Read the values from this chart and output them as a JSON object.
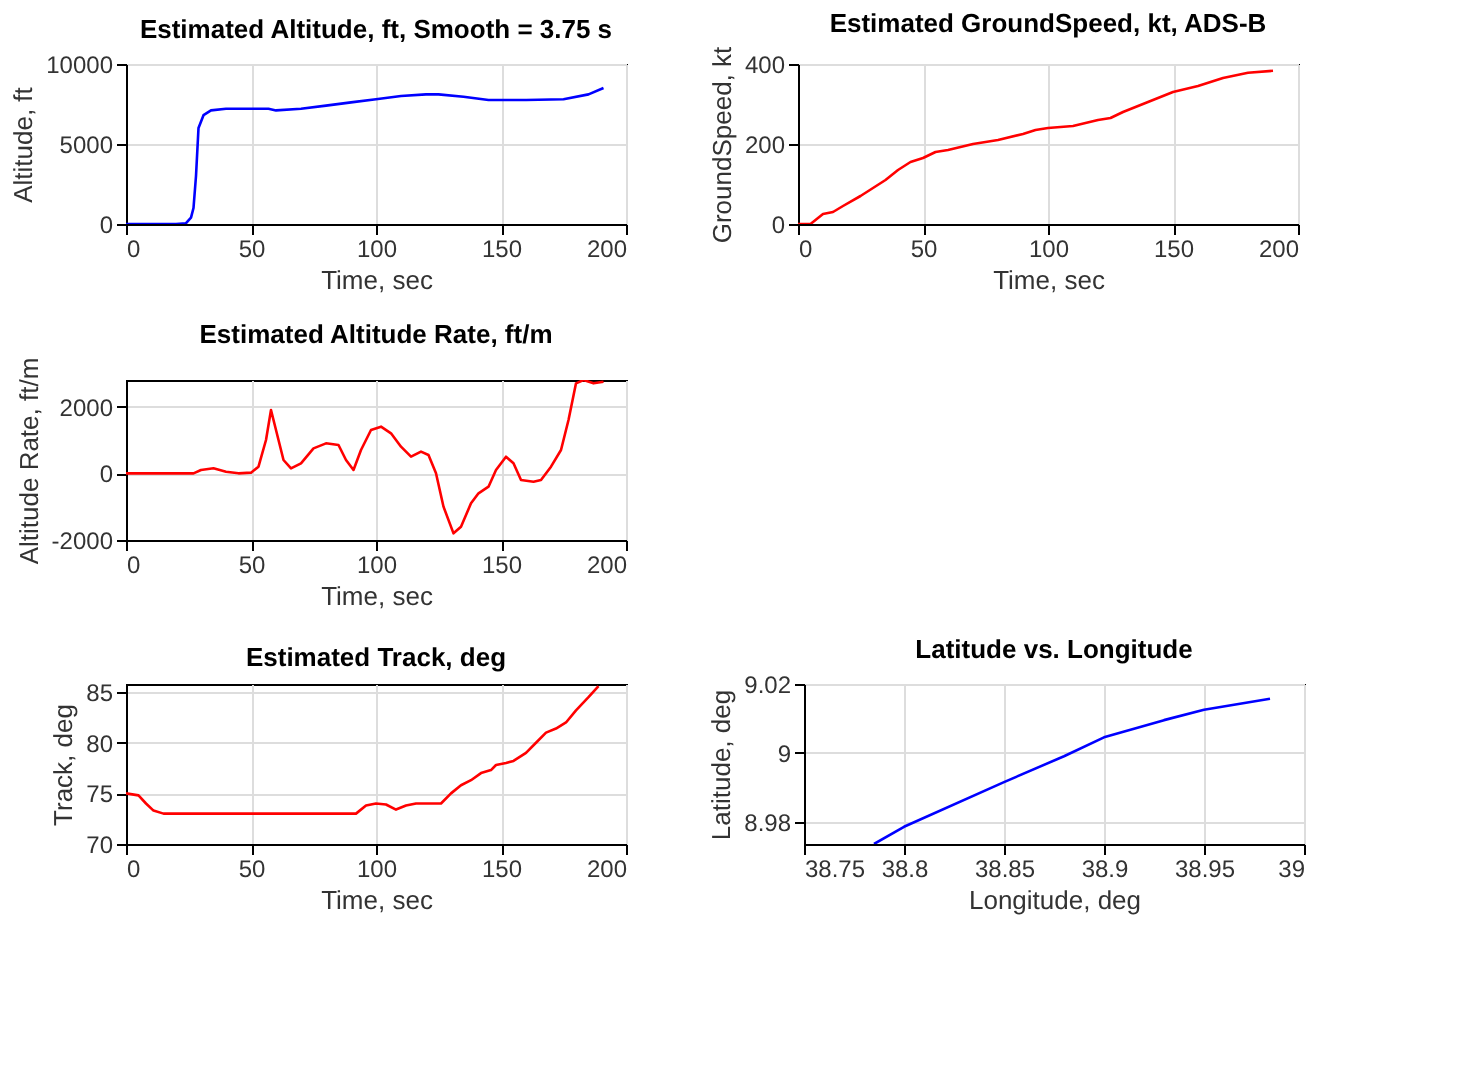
{
  "chart_data": [
    {
      "type": "line",
      "title": "Estimated Altitude, ft, Smooth = 3.75 s",
      "xlabel": "Time, sec",
      "ylabel": "Altitude, ft",
      "xlim": [
        0,
        200
      ],
      "xticks": [
        0,
        50,
        100,
        150,
        200
      ],
      "ylim": [
        0,
        10000
      ],
      "yticks": [
        0,
        5000,
        10000
      ],
      "grid": true,
      "series": [
        {
          "color": "#0000ff",
          "x": [
            0,
            10,
            20,
            24,
            26,
            27,
            28,
            29,
            31,
            34,
            40,
            50,
            57,
            60,
            70,
            80,
            90,
            100,
            110,
            120,
            125,
            135,
            145,
            160,
            175,
            185,
            191
          ],
          "values": [
            0,
            0,
            0,
            50,
            400,
            1000,
            3000,
            6000,
            6800,
            7100,
            7200,
            7200,
            7200,
            7100,
            7200,
            7400,
            7600,
            7800,
            8000,
            8100,
            8100,
            7950,
            7750,
            7750,
            7800,
            8100,
            8500
          ]
        }
      ]
    },
    {
      "type": "line",
      "title": "Estimated GroundSpeed, kt, ADS-B",
      "xlabel": "Time, sec",
      "ylabel": "GroundSpeed, kt",
      "xlim": [
        0,
        200
      ],
      "xticks": [
        0,
        50,
        100,
        150,
        200
      ],
      "ylim": [
        0,
        400
      ],
      "yticks": [
        0,
        200,
        400
      ],
      "grid": true,
      "series": [
        {
          "color": "#ff0000",
          "x": [
            0,
            5,
            8,
            10,
            14,
            18,
            25,
            30,
            35,
            40,
            45,
            50,
            55,
            60,
            70,
            80,
            90,
            95,
            100,
            110,
            120,
            125,
            130,
            140,
            150,
            160,
            170,
            180,
            190
          ],
          "values": [
            0,
            0,
            15,
            25,
            30,
            45,
            70,
            90,
            110,
            135,
            155,
            165,
            180,
            185,
            200,
            210,
            225,
            235,
            240,
            245,
            260,
            265,
            280,
            305,
            330,
            345,
            365,
            378,
            383
          ]
        }
      ]
    },
    {
      "type": "line",
      "title": "Estimated Altitude Rate, ft/m",
      "xlabel": "Time, sec",
      "ylabel": "Altitude Rate, ft/m",
      "xlim": [
        0,
        200
      ],
      "xticks": [
        0,
        50,
        100,
        150,
        200
      ],
      "ylim": [
        -2000,
        2800
      ],
      "yticks": [
        -2000,
        0,
        2000
      ],
      "grid": true,
      "series": [
        {
          "color": "#ff0000",
          "x": [
            0,
            27,
            30,
            35,
            40,
            45,
            50,
            53,
            56,
            58,
            60,
            63,
            66,
            70,
            75,
            80,
            85,
            88,
            91,
            94,
            98,
            102,
            106,
            110,
            114,
            118,
            121,
            124,
            127,
            131,
            134,
            138,
            141,
            145,
            148,
            152,
            155,
            158,
            163,
            166,
            170,
            174,
            177,
            180,
            183,
            187,
            191
          ],
          "values": [
            0,
            0,
            100,
            150,
            50,
            0,
            20,
            200,
            1000,
            1900,
            1300,
            400,
            150,
            300,
            750,
            900,
            850,
            400,
            100,
            700,
            1300,
            1400,
            1200,
            800,
            500,
            650,
            550,
            0,
            -1000,
            -1800,
            -1600,
            -900,
            -600,
            -400,
            100,
            500,
            300,
            -200,
            -250,
            -200,
            200,
            700,
            1600,
            2700,
            2800,
            2700,
            2750
          ]
        }
      ]
    },
    {
      "type": "line",
      "title": "Estimated Track, deg",
      "xlabel": "Time, sec",
      "ylabel": "Track, deg",
      "xlim": [
        0,
        200
      ],
      "xticks": [
        0,
        50,
        100,
        150,
        200
      ],
      "ylim": [
        70,
        85.8
      ],
      "yticks": [
        70,
        75,
        80,
        85
      ],
      "grid": true,
      "series": [
        {
          "color": "#ff0000",
          "x": [
            0,
            5,
            8,
            11,
            15,
            30,
            50,
            70,
            92,
            96,
            100,
            104,
            108,
            112,
            116,
            126,
            130,
            134,
            138,
            142,
            146,
            148,
            152,
            155,
            160,
            164,
            168,
            172,
            176,
            180,
            185,
            189
          ],
          "values": [
            75,
            74.8,
            74,
            73.3,
            73,
            73,
            73,
            73,
            73,
            73.8,
            74,
            73.9,
            73.4,
            73.8,
            74,
            74,
            75,
            75.8,
            76.3,
            77,
            77.3,
            77.8,
            78,
            78.2,
            79,
            80,
            81,
            81.4,
            82,
            83.2,
            84.5,
            85.6
          ]
        }
      ]
    },
    {
      "type": "line",
      "title": "Latitude vs. Longitude",
      "xlabel": "Longitude, deg",
      "ylabel": "Latitude, deg",
      "xlim": [
        38.75,
        39
      ],
      "xticks": [
        38.75,
        38.8,
        38.85,
        38.9,
        38.95,
        39
      ],
      "ylim": [
        8.9735,
        9.02
      ],
      "yticks": [
        8.98,
        9,
        9.02
      ],
      "grid": true,
      "series": [
        {
          "color": "#0000ff",
          "x": [
            38.785,
            38.8,
            38.85,
            38.88,
            38.9,
            38.93,
            38.95,
            38.983
          ],
          "values": [
            8.9735,
            8.9785,
            8.9915,
            8.999,
            9.0045,
            9.0095,
            9.0125,
            9.0157
          ]
        }
      ]
    }
  ]
}
